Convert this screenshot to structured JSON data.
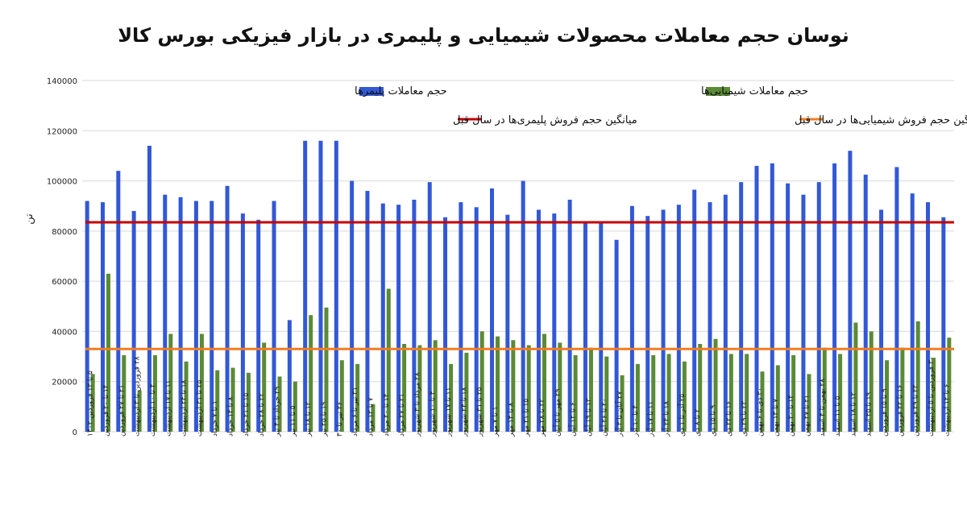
{
  "colors": {
    "background": "#ffffff",
    "polymer": "#3258d6",
    "chemical": "#5b8a35",
    "polymer_avg": "#c40000",
    "chemical_avg": "#ef7d22",
    "grid": "#d9d9d9",
    "text": "#222222"
  },
  "chart_data": {
    "type": "bar",
    "title": "نوسان حجم معاملات محصولات شیمیایی و پلیمری در بازار فیزیکی بورس کالا",
    "ylabel": "تن",
    "xlabel": "",
    "ylim": [
      0,
      140000
    ],
    "yticks": [
      0,
      20000,
      40000,
      60000,
      80000,
      100000,
      120000,
      140000
    ],
    "ytick_labels": [
      "0",
      "20000",
      "40000",
      "60000",
      "80000",
      "100000",
      "120000",
      "140000"
    ],
    "grid": true,
    "legend": {
      "position": "top",
      "items": {
        "polymer": "حجم معاملات پلیمرها",
        "chemical": "حجم معاملات شیمیایی‌ها",
        "polymer_avg": "میانگین حجم فروش پلیمری‌ها در سال قبل",
        "chemical_avg": "میانگین حجم فروش شیمیایی‌ها در سال قبل"
      }
    },
    "categories": [
      "۵ تا ۱۳ فروردین ۱۴۰۲",
      "۱۴ تا ۲۰ فروردین",
      "۲۱ تا ۲۷ فروردین",
      "۲۸ فروردین تا ۳ اردیبهشت",
      "۴ تا ۱۰ اردیبهشت",
      "۱۱ تا ۱۷ اردیبهشت",
      "۱۸ تا ۲۴ اردیبهشت",
      "۲۵ تا ۳۱ اردیبهشت",
      "۱ تا ۷ خرداد",
      "۸ تا ۱۴ خرداد",
      "۱۵ تا ۲۱ خرداد",
      "۲۲ تا ۲۸ خرداد",
      "۲۹ خرداد تا ۴ تیر",
      "۵ تا ۱۱ تیر",
      "۱۲ تا ۱۸ تیر",
      "۱۹ تا ۲۵ تیر",
      "۲۶ تیر تا ۳۰",
      "۳۱ تیر تا ۶ مرداد",
      "۷ تا ۱۳ مرداد",
      "۱۴ تا ۲۰ مرداد",
      "۲۱ تا ۲۷ مرداد",
      "۲۸ مرداد تا ۳ شهریور",
      "۴ تا ۱۰ شهریور",
      "۱۱ تا ۱۷ شهریور",
      "۱۸ تا ۲۴ شهریور",
      "۲۵ تا ۳۱ شهریور",
      "۱ تا ۷ مهر",
      "۸ تا ۱۴ مهر",
      "۱۵ تا ۲۱ مهر",
      "۲۲ تا ۲۸ مهر",
      "۲۹ مهر تا ۵ آبان",
      "۶ تا ۱۲ آبان",
      "۱۳ تا ۱۹ آبان",
      "۲۰ تا ۲۶ آبان",
      "۲۷ آبان تا ۳ آذر",
      "۴ تا ۱۰ آذر",
      "۱۱ تا ۱۷ آذر",
      "۱۸ تا ۲۴ آذر",
      "۲۵ آذر تا ۱ دی",
      "۲ تا ۸ دی",
      "۹ تا ۱۵ دی",
      "۱۶ تا ۲۲ دی",
      "۲۳ تا ۲۹ دی",
      "۳۰ دی تا ۶ بهمن",
      "۷ تا ۱۳ بهمن",
      "۱۴ تا ۲۰ بهمن",
      "۲۱ تا ۲۷ بهمن",
      "۲۸ بهمن تا ۴ اسفند",
      "۵ تا ۱۱ اسفند",
      "۱۲ تا ۱۸ اسفند",
      "۱۹ تا ۲۵ اسفند",
      "۹ تا ۱۵ فروردین",
      "۱۶ تا ۲۲ فروردین",
      "۲۳ تا ۲۹ فروردین",
      "۳۰ فروردین تا ۵ اردیبهشت",
      "۶ تا ۱۲ اردیبهشت"
    ],
    "series": [
      {
        "key": "polymer",
        "name": "حجم معاملات پلیمرها",
        "values": [
          92000,
          91500,
          104000,
          88000,
          114000,
          94500,
          93500,
          92000,
          92000,
          98000,
          87000,
          84500,
          92000,
          44500,
          116000,
          116000,
          116000,
          100000,
          96000,
          91000,
          90500,
          92500,
          99500,
          85500,
          91500,
          89500,
          97000,
          86500,
          100000,
          88500,
          87000,
          92500,
          83500,
          83500,
          76500,
          90000,
          86000,
          88500,
          90500,
          96500,
          91500,
          94500,
          99500,
          106000,
          107000,
          99000,
          94500,
          99500,
          107000,
          112000,
          102500,
          88500,
          105500,
          95000,
          91500,
          85500
        ]
      },
      {
        "key": "chemical",
        "name": "حجم معاملات شیمیایی‌ها",
        "values": [
          23000,
          63000,
          30500,
          16500,
          30500,
          39000,
          28000,
          39000,
          24500,
          25500,
          23500,
          35500,
          22000,
          20000,
          46500,
          49500,
          28500,
          27000,
          11000,
          57000,
          35000,
          34500,
          36500,
          27000,
          31500,
          40000,
          38000,
          36500,
          34500,
          39000,
          35500,
          30500,
          33500,
          30000,
          22500,
          27000,
          30500,
          31000,
          28000,
          35000,
          37000,
          31000,
          31000,
          24000,
          26500,
          30500,
          23000,
          33500,
          31000,
          43500,
          40000,
          28500,
          33500,
          44000,
          29500,
          37500
        ]
      }
    ],
    "reference_lines": [
      {
        "key": "polymer_avg",
        "name": "میانگین حجم فروش پلیمری‌ها در سال قبل",
        "value": 83500
      },
      {
        "key": "chemical_avg",
        "name": "میانگین حجم فروش شیمیایی‌ها در سال قبل",
        "value": 33000
      }
    ]
  }
}
